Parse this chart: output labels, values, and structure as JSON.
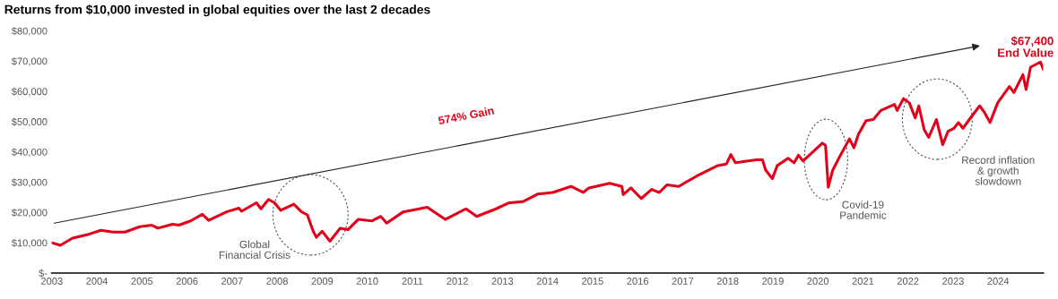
{
  "chart_data": {
    "type": "line",
    "title": "Returns from $10,000 invested in global equities over the last 2 decades",
    "x": [
      2003.0,
      2003.19,
      2003.46,
      2003.82,
      2004.09,
      2004.36,
      2004.62,
      2004.95,
      2005.22,
      2005.35,
      2005.68,
      2005.82,
      2006.08,
      2006.34,
      2006.48,
      2006.88,
      2007.15,
      2007.21,
      2007.54,
      2007.64,
      2007.81,
      2007.94,
      2008.08,
      2008.37,
      2008.54,
      2008.67,
      2008.8,
      2008.87,
      2009.0,
      2009.17,
      2009.4,
      2009.57,
      2009.8,
      2010.1,
      2010.3,
      2010.43,
      2010.8,
      2011.33,
      2011.73,
      2012.19,
      2012.43,
      2012.86,
      2013.13,
      2013.46,
      2013.79,
      2014.12,
      2014.52,
      2014.79,
      2014.92,
      2015.38,
      2015.65,
      2015.68,
      2015.85,
      2016.08,
      2016.31,
      2016.48,
      2016.65,
      2016.91,
      2017.31,
      2017.78,
      2017.97,
      2018.07,
      2018.17,
      2018.64,
      2018.77,
      2018.84,
      2018.99,
      2019.1,
      2019.34,
      2019.47,
      2019.57,
      2019.67,
      2020.1,
      2020.17,
      2020.23,
      2020.33,
      2020.5,
      2020.7,
      2020.8,
      2020.9,
      2021.07,
      2021.23,
      2021.4,
      2021.7,
      2021.76,
      2021.9,
      2022.03,
      2022.16,
      2022.24,
      2022.36,
      2022.46,
      2022.63,
      2022.77,
      2022.89,
      2023.02,
      2023.12,
      2023.22,
      2023.36,
      2023.59,
      2023.69,
      2023.82,
      2023.99,
      2024.25,
      2024.35,
      2024.55,
      2024.62,
      2024.72,
      2024.94,
      2025.0
    ],
    "series": [
      {
        "color": "#e2001a",
        "values": [
          10000,
          9150,
          11500,
          12800,
          14100,
          13500,
          13500,
          15300,
          15800,
          14800,
          16100,
          15800,
          17200,
          19400,
          17400,
          20200,
          21400,
          20400,
          23200,
          21200,
          24300,
          23200,
          20700,
          22700,
          20200,
          19200,
          13800,
          11800,
          13800,
          10500,
          14800,
          14300,
          17700,
          17200,
          18700,
          16500,
          20200,
          21700,
          17700,
          21200,
          18700,
          21200,
          23100,
          23600,
          26100,
          26600,
          28600,
          26600,
          28100,
          29600,
          28600,
          25900,
          28100,
          24600,
          27600,
          26600,
          29100,
          28600,
          32000,
          35500,
          36000,
          39100,
          36400,
          37400,
          37400,
          34000,
          31200,
          35500,
          37900,
          36400,
          38900,
          37000,
          42900,
          42100,
          28300,
          34000,
          38900,
          44300,
          41400,
          45800,
          50300,
          50700,
          53700,
          55700,
          53700,
          57600,
          56200,
          51200,
          55200,
          47300,
          44800,
          50700,
          42400,
          46800,
          47800,
          49700,
          47800,
          50700,
          55200,
          53200,
          49700,
          56200,
          61600,
          59600,
          65500,
          60600,
          68000,
          69700,
          67400
        ]
      }
    ],
    "xlim": [
      2003,
      2025
    ],
    "xticks": [
      2003,
      2004,
      2005,
      2006,
      2007,
      2008,
      2009,
      2010,
      2011,
      2012,
      2013,
      2014,
      2015,
      2016,
      2017,
      2018,
      2019,
      2020,
      2021,
      2022,
      2023,
      2024
    ],
    "ylim": [
      0,
      80000
    ],
    "yticks": [
      {
        "value": 0,
        "label": "$-"
      },
      {
        "value": 10000,
        "label": "$10,000"
      },
      {
        "value": 20000,
        "label": "$20,000"
      },
      {
        "value": 30000,
        "label": "$30,000"
      },
      {
        "value": 40000,
        "label": "$40,000"
      },
      {
        "value": 50000,
        "label": "$50,000"
      },
      {
        "value": 60000,
        "label": "$60,000"
      },
      {
        "value": 70000,
        "label": "$70,000"
      },
      {
        "value": 80000,
        "label": "$80,000"
      }
    ],
    "grid": false,
    "legend": false,
    "marker": "none",
    "line_style": "solid",
    "annotations": [
      "574% Gain",
      "$67,400\nEnd Value",
      "Global\nFinancial Crisis",
      "Covid-19\nPandemic",
      "Record inflation\n& growth\nslowdown"
    ]
  }
}
